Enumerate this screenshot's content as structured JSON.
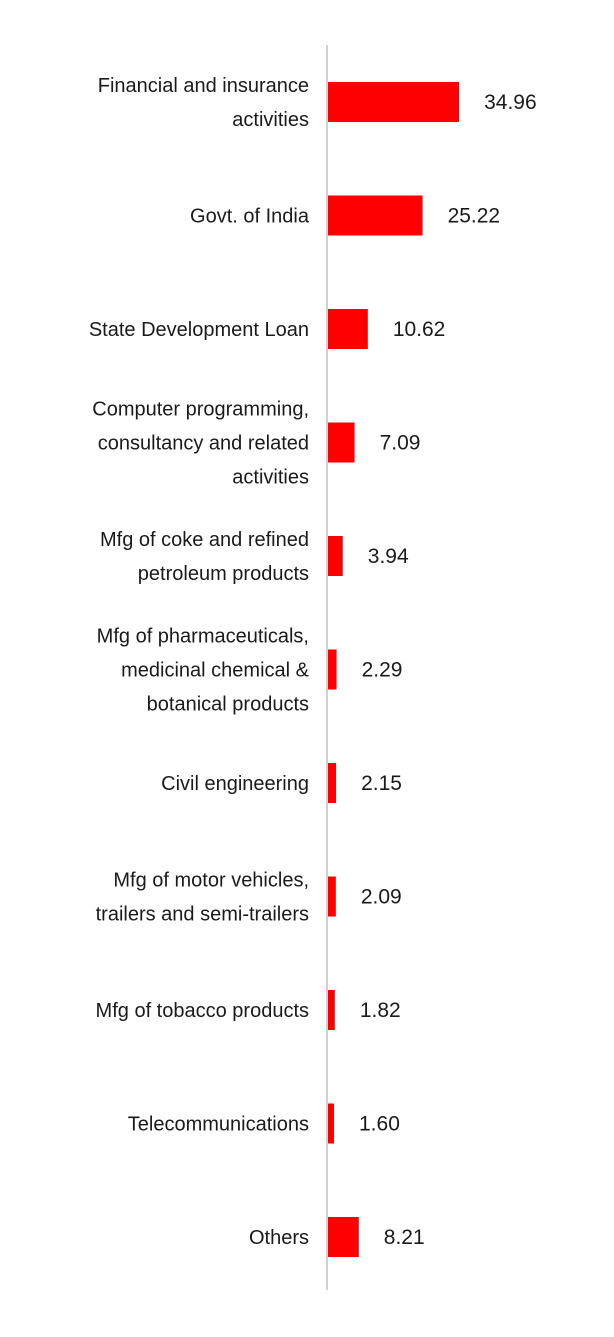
{
  "chart_data": {
    "type": "bar",
    "orientation": "horizontal",
    "bar_color": "#ff0000",
    "axis_color": "#d0d0d0",
    "grid": false,
    "legend": "none",
    "xlim": [
      0,
      40
    ],
    "categories": [
      [
        "Financial and insurance",
        "activities"
      ],
      [
        "Govt. of India"
      ],
      [
        "State Development Loan"
      ],
      [
        "Computer programming,",
        "consultancy and related",
        "activities"
      ],
      [
        "Mfg of coke and refined",
        "petroleum products"
      ],
      [
        "Mfg of pharmaceuticals,",
        "medicinal chemical &",
        "botanical products"
      ],
      [
        "Civil engineering"
      ],
      [
        "Mfg of motor vehicles,",
        "trailers and semi-trailers"
      ],
      [
        "Mfg of tobacco products"
      ],
      [
        "Telecommunications"
      ],
      [
        "Others"
      ]
    ],
    "values": [
      34.96,
      25.22,
      10.62,
      7.09,
      3.94,
      2.29,
      2.15,
      2.09,
      1.82,
      1.6,
      8.21
    ],
    "value_labels": [
      "34.96",
      "25.22",
      "10.62",
      "7.09",
      "3.94",
      "2.29",
      "2.15",
      "2.09",
      "1.82",
      "1.60",
      "8.21"
    ]
  }
}
